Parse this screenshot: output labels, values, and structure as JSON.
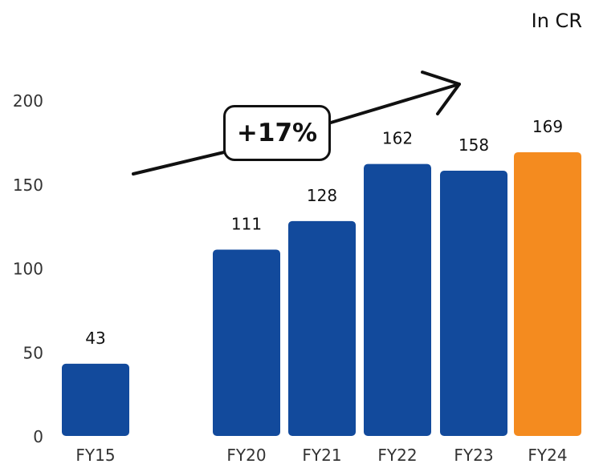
{
  "unit_label": "In CR",
  "growth_label": "+17%",
  "colors": {
    "base": "#124A9C",
    "highlight": "#F48B1F",
    "text": "#111111",
    "axis_text": "#333333"
  },
  "chart_data": {
    "type": "bar",
    "categories": [
      "FY15",
      "FY20",
      "FY21",
      "FY22",
      "FY23",
      "FY24"
    ],
    "values": [
      43,
      111,
      128,
      162,
      158,
      169
    ],
    "highlight_index": 5,
    "yticks": [
      0,
      50,
      100,
      150,
      200
    ],
    "ylim": [
      0,
      200
    ],
    "grid": false,
    "title": "",
    "xlabel": "",
    "ylabel": ""
  }
}
